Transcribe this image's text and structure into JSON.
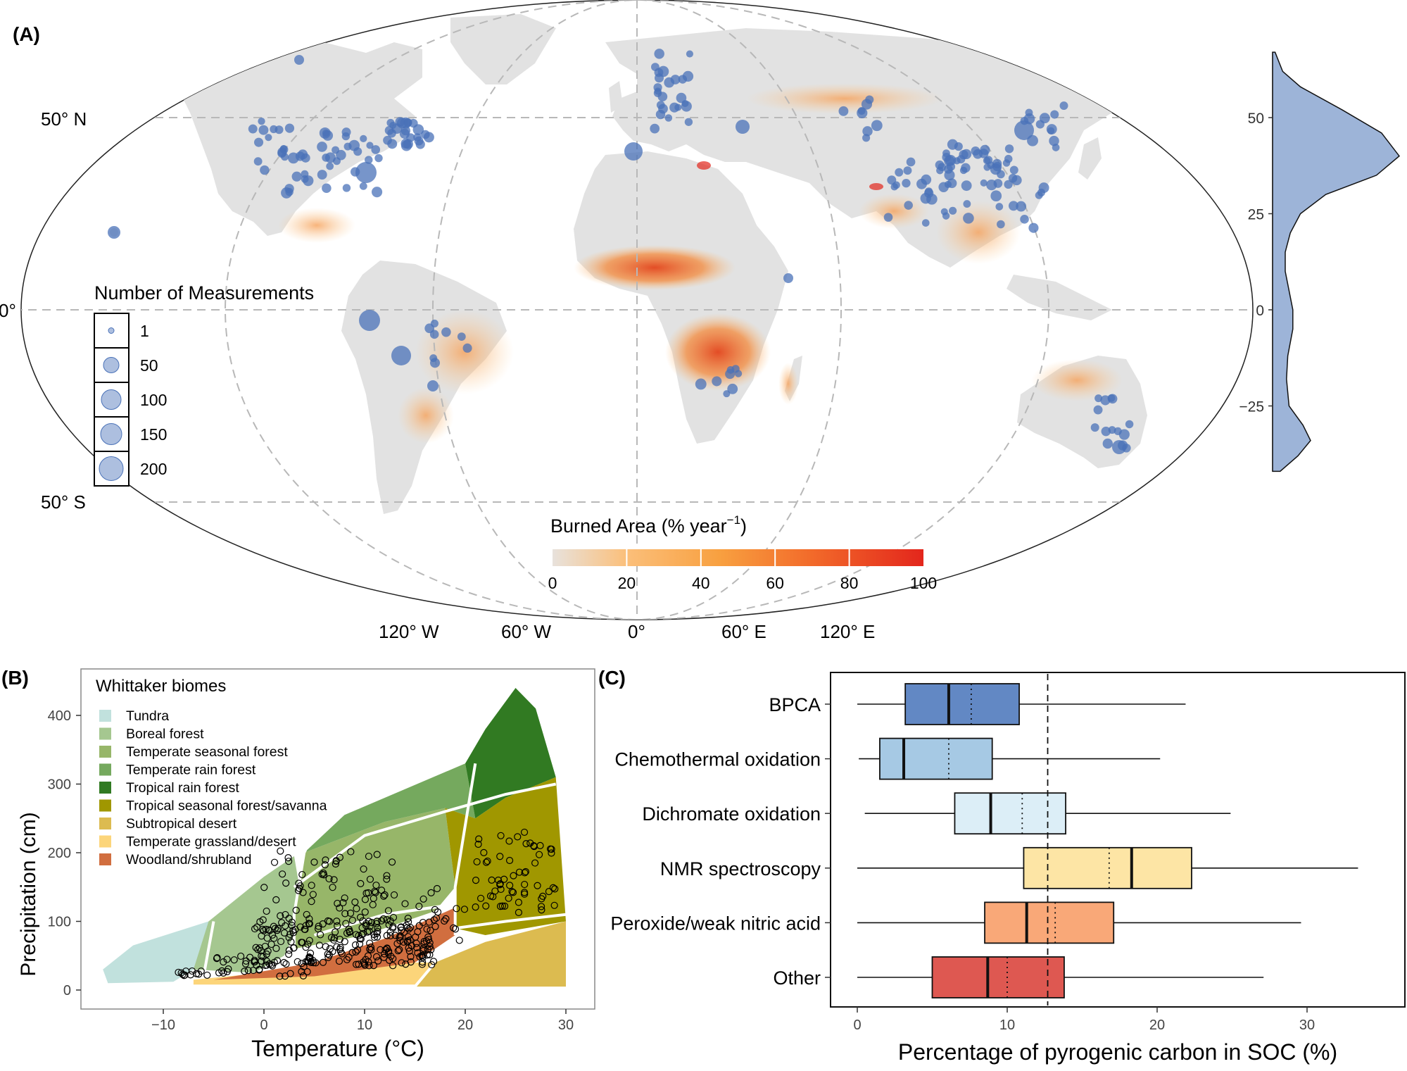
{
  "panel_a": {
    "label": "(A)",
    "lat_labels": [
      "50° N",
      "0°",
      "50° S"
    ],
    "lon_labels": [
      "120° W",
      "60° W",
      "0°",
      "60° E",
      "120° E"
    ],
    "legend_title": "Number of Measurements",
    "legend_sizes": [
      "1",
      "50",
      "100",
      "150",
      "200"
    ],
    "colorbar_title": "Burned Area (% year",
    "colorbar_sup": "−1",
    "colorbar_close": ")",
    "colorbar_ticks": [
      "0",
      "20",
      "40",
      "60",
      "80",
      "100"
    ],
    "colors": {
      "land": "#e2e2e2",
      "points": "#4a72b8",
      "fire_low": "#fbbf7a",
      "fire_high": "#e3261c"
    }
  },
  "chart_data": [
    {
      "type": "area",
      "panel": "A-side",
      "description_axis": "latitude",
      "y_ticks": [
        "50",
        "25",
        "0",
        "−25"
      ],
      "ylim": [
        -42,
        67
      ],
      "density": [
        {
          "lat": 67,
          "d": 0.02
        },
        {
          "lat": 62,
          "d": 0.08
        },
        {
          "lat": 58,
          "d": 0.22
        },
        {
          "lat": 52,
          "d": 0.55
        },
        {
          "lat": 46,
          "d": 0.86
        },
        {
          "lat": 40,
          "d": 1.0
        },
        {
          "lat": 35,
          "d": 0.82
        },
        {
          "lat": 30,
          "d": 0.42
        },
        {
          "lat": 25,
          "d": 0.22
        },
        {
          "lat": 20,
          "d": 0.14
        },
        {
          "lat": 15,
          "d": 0.1
        },
        {
          "lat": 10,
          "d": 0.1
        },
        {
          "lat": 5,
          "d": 0.13
        },
        {
          "lat": 0,
          "d": 0.16
        },
        {
          "lat": -5,
          "d": 0.16
        },
        {
          "lat": -12,
          "d": 0.12
        },
        {
          "lat": -18,
          "d": 0.11
        },
        {
          "lat": -25,
          "d": 0.13
        },
        {
          "lat": -30,
          "d": 0.24
        },
        {
          "lat": -34,
          "d": 0.3
        },
        {
          "lat": -38,
          "d": 0.2
        },
        {
          "lat": -42,
          "d": 0.06
        }
      ],
      "color": "#9db4d8"
    },
    {
      "type": "scatter",
      "panel": "B",
      "label": "(B)",
      "legend_title": "Whittaker biomes",
      "xlabel": "Temperature (°C)",
      "ylabel": "Precipitation (cm)",
      "xlim": [
        -17,
        32
      ],
      "ylim": [
        -5,
        450
      ],
      "x_ticks": [
        "−10",
        "0",
        "10",
        "20",
        "30"
      ],
      "y_ticks": [
        "0",
        "100",
        "200",
        "300",
        "400"
      ],
      "biomes": [
        {
          "name": "Tundra",
          "color": "#c1e1dd"
        },
        {
          "name": "Boreal forest",
          "color": "#a5c790"
        },
        {
          "name": "Temperate seasonal forest",
          "color": "#97b669"
        },
        {
          "name": "Temperate rain forest",
          "color": "#75a95e"
        },
        {
          "name": "Tropical rain forest",
          "color": "#317a22"
        },
        {
          "name": "Tropical seasonal forest/savanna",
          "color": "#a09700"
        },
        {
          "name": "Subtropical desert",
          "color": "#dcbb50"
        },
        {
          "name": "Temperate grassland/desert",
          "color": "#fcd57a"
        },
        {
          "name": "Woodland/shrubland",
          "color": "#d16e3f"
        }
      ]
    },
    {
      "type": "box",
      "panel": "C",
      "label": "(C)",
      "xlabel": "Percentage of pyrogenic carbon in SOC (%)",
      "xlim": [
        -0.8,
        36.5
      ],
      "x_ticks": [
        0,
        10,
        20,
        30
      ],
      "overall_mean": 12.7,
      "categories": [
        "BPCA",
        "Chemothermal oxidation",
        "Dichromate oxidation",
        "NMR spectroscopy",
        "Peroxide/weak nitric acid",
        "Other"
      ],
      "boxes": [
        {
          "name": "BPCA",
          "min": 0,
          "q1": 3.2,
          "median": 6.1,
          "mean": 7.6,
          "q3": 10.8,
          "max": 21.9,
          "color": "#6288c4"
        },
        {
          "name": "Chemothermal oxidation",
          "min": 0.1,
          "q1": 1.5,
          "median": 3.1,
          "mean": 6.1,
          "q3": 9.0,
          "max": 20.2,
          "color": "#a6c9e4"
        },
        {
          "name": "Dichromate oxidation",
          "min": 0.5,
          "q1": 6.5,
          "median": 8.9,
          "mean": 11.0,
          "q3": 13.9,
          "max": 24.9,
          "color": "#dceef7"
        },
        {
          "name": "NMR spectroscopy",
          "min": 0,
          "q1": 11.1,
          "median": 18.3,
          "mean": 16.8,
          "q3": 22.3,
          "max": 33.4,
          "color": "#fde5a5"
        },
        {
          "name": "Peroxide/weak nitric acid",
          "min": 0,
          "q1": 8.5,
          "median": 11.3,
          "mean": 13.2,
          "q3": 17.1,
          "max": 29.6,
          "color": "#f9a878"
        },
        {
          "name": "Other",
          "min": 0,
          "q1": 5.0,
          "median": 8.7,
          "mean": 10.0,
          "q3": 13.8,
          "max": 27.1,
          "color": "#de5851"
        }
      ]
    }
  ]
}
